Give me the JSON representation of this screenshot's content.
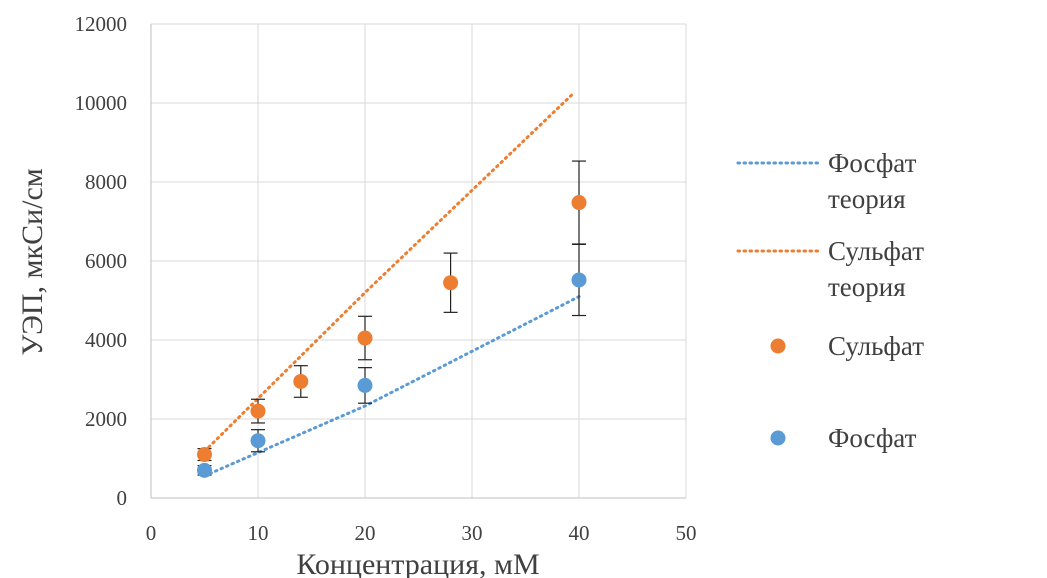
{
  "chart_data": {
    "type": "scatter",
    "xlabel": "Концентрация, мМ",
    "ylabel": "УЭП, мкСи/см",
    "xlim": [
      0,
      50
    ],
    "ylim": [
      0,
      12000
    ],
    "xticks": [
      "0",
      "10",
      "20",
      "30",
      "40",
      "50"
    ],
    "yticks": [
      "0",
      "2000",
      "4000",
      "6000",
      "8000",
      "10000",
      "12000"
    ],
    "grid": true,
    "legend_position": "right",
    "series": [
      {
        "name": "Фосфат теория",
        "kind": "dotted-line",
        "color": "#5B9BD5",
        "points": [
          [
            5,
            560
          ],
          [
            20,
            2330
          ],
          [
            40,
            5100
          ]
        ]
      },
      {
        "name": "Сульфат теория",
        "kind": "dotted-line",
        "color": "#ED7D31",
        "points": [
          [
            5,
            1180
          ],
          [
            20,
            5200
          ],
          [
            39.5,
            10250
          ]
        ]
      },
      {
        "name": "Сульфат",
        "kind": "marker",
        "color": "#ED7D31",
        "points": [
          [
            5,
            1100
          ],
          [
            10,
            2200
          ],
          [
            14,
            2950
          ],
          [
            20,
            4050
          ],
          [
            28,
            5450
          ],
          [
            40,
            7480
          ]
        ],
        "errors": [
          150,
          300,
          400,
          550,
          750,
          1050
        ]
      },
      {
        "name": "Фосфат",
        "kind": "marker",
        "color": "#5B9BD5",
        "points": [
          [
            5,
            700
          ],
          [
            10,
            1450
          ],
          [
            20,
            2850
          ],
          [
            40,
            5520
          ]
        ],
        "errors": [
          120,
          280,
          450,
          900
        ]
      }
    ]
  }
}
